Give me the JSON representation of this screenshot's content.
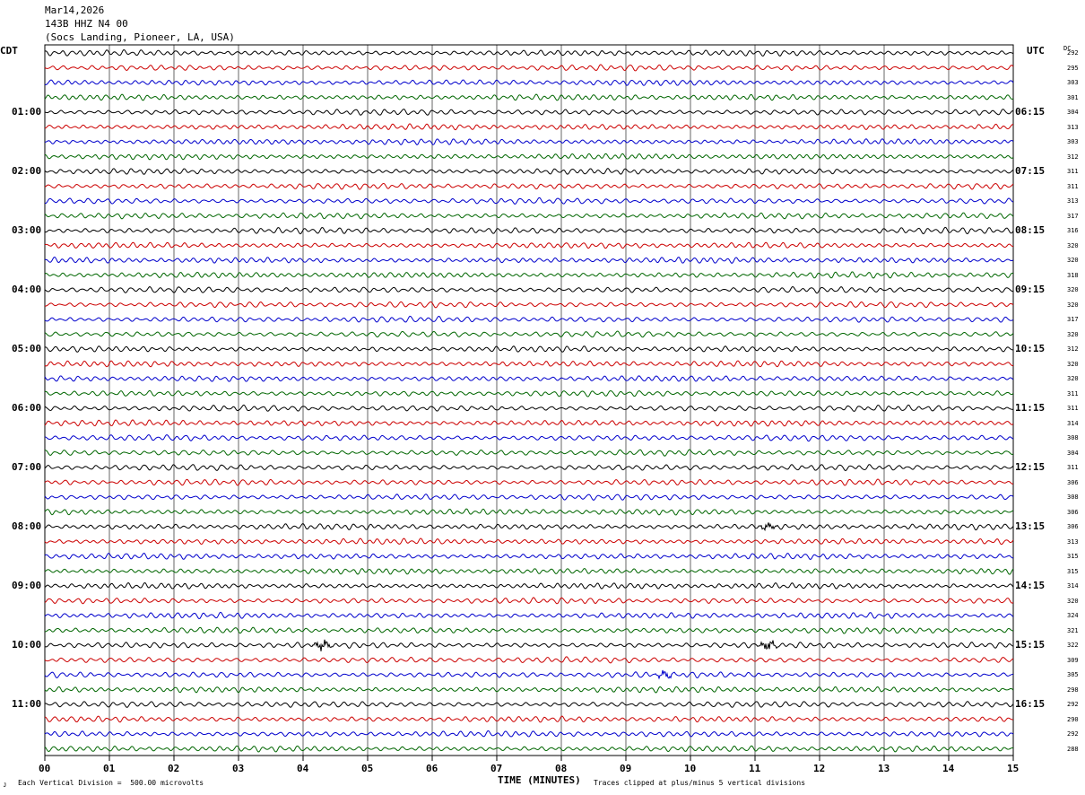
{
  "header": {
    "date": "Mar14,2026",
    "station": "143B HHZ N4 00",
    "location": "(Socs Landing, Pioneer, LA, USA)"
  },
  "left_zone": "CDT",
  "right_zone": "UTC",
  "dc_label": "DC",
  "footer": {
    "scale_note": "Each Vertical Division =  500.00 microvolts",
    "clip_note": "Traces clipped at plus/minus 5 vertical divisions",
    "mark": "ᴊ"
  },
  "colors": [
    "#000000",
    "#cc0000",
    "#0000cc",
    "#006600"
  ],
  "chart_data": {
    "type": "line",
    "xlabel": "TIME (MINUTES)",
    "xlim": [
      0,
      15
    ],
    "x_ticks": [
      "00",
      "01",
      "02",
      "03",
      "04",
      "05",
      "06",
      "07",
      "08",
      "09",
      "10",
      "11",
      "12",
      "13",
      "14",
      "15"
    ],
    "hour_labels_left": [
      "01:00",
      "02:00",
      "03:00",
      "04:00",
      "05:00",
      "06:00",
      "07:00",
      "08:00",
      "09:00",
      "10:00",
      "11:00"
    ],
    "hour_labels_right": [
      "06:15",
      "07:15",
      "08:15",
      "09:15",
      "10:15",
      "11:15",
      "12:15",
      "13:15",
      "14:15",
      "15:15",
      "16:15"
    ],
    "traces_per_hour": 4,
    "dc_offsets": [
      292,
      295,
      303,
      301,
      304,
      313,
      303,
      312,
      311,
      311,
      313,
      317,
      316,
      320,
      320,
      318,
      320,
      320,
      317,
      320,
      312,
      320,
      320,
      311,
      311,
      314,
      308,
      304,
      311,
      306,
      308,
      306,
      306,
      313,
      315,
      315,
      314,
      320,
      324,
      321,
      322,
      309,
      305,
      298,
      292,
      290,
      292,
      288
    ],
    "events": [
      {
        "trace": 40,
        "minute": 4.3,
        "amplitude": "high"
      },
      {
        "trace": 40,
        "minute": 11.2,
        "amplitude": "high"
      },
      {
        "trace": 42,
        "minute": 9.6,
        "amplitude": "medium"
      },
      {
        "trace": 32,
        "minute": 11.2,
        "amplitude": "medium"
      }
    ]
  }
}
